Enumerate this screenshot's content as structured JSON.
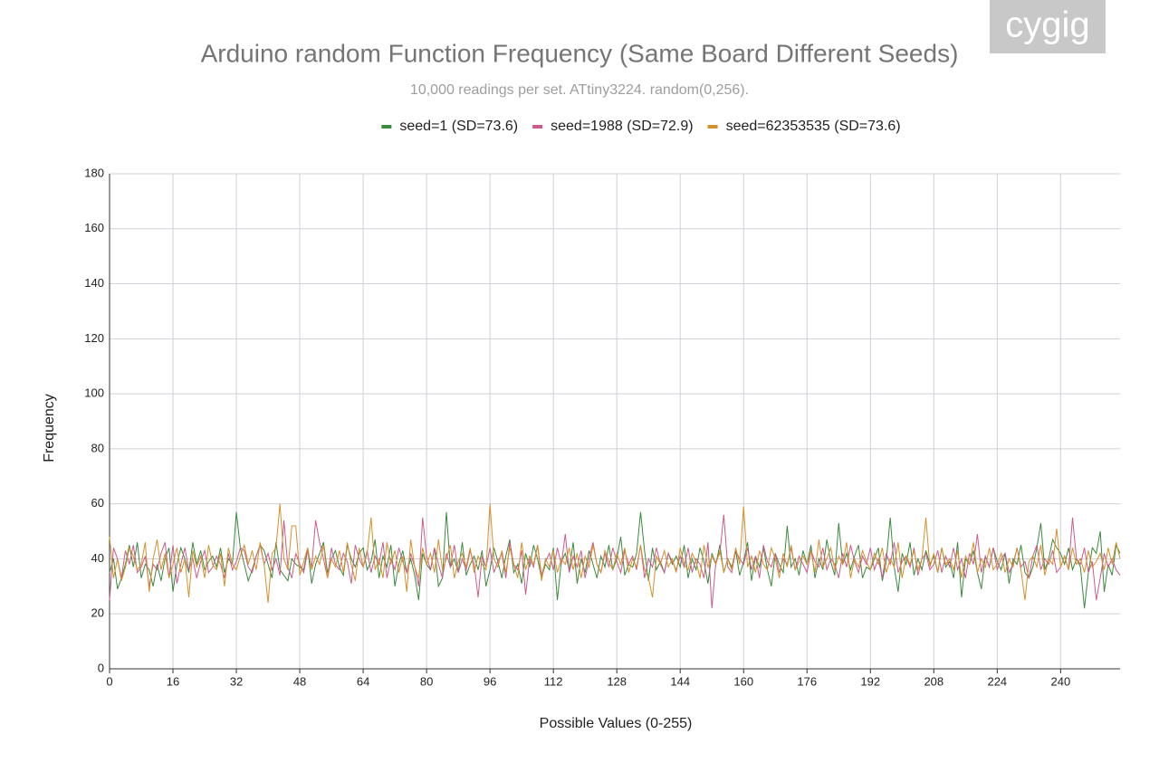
{
  "logo": "cygig",
  "chart_data": {
    "type": "line",
    "title": "Arduino random Function Frequency (Same Board Different Seeds)",
    "subtitle": "10,000 readings per set. ATtiny3224. random(0,256).",
    "xlabel": "Possible Values (0-255)",
    "ylabel": "Frequency",
    "grid": true,
    "legend": "top",
    "xlim": [
      0,
      255
    ],
    "xticks": [
      0,
      16,
      32,
      48,
      64,
      80,
      96,
      112,
      128,
      144,
      160,
      176,
      192,
      208,
      224,
      240
    ],
    "ylim": [
      0,
      180
    ],
    "yticks": [
      0,
      20,
      40,
      60,
      80,
      100,
      120,
      140,
      160,
      180
    ],
    "x": [
      0,
      1,
      2,
      3,
      4,
      5,
      6,
      7,
      8,
      9,
      10,
      11,
      12,
      13,
      14,
      15,
      16,
      17,
      18,
      19,
      20,
      21,
      22,
      23,
      24,
      25,
      26,
      27,
      28,
      29,
      30,
      31,
      32,
      33,
      34,
      35,
      36,
      37,
      38,
      39,
      40,
      41,
      42,
      43,
      44,
      45,
      46,
      47,
      48,
      49,
      50,
      51,
      52,
      53,
      54,
      55,
      56,
      57,
      58,
      59,
      60,
      61,
      62,
      63,
      64,
      65,
      66,
      67,
      68,
      69,
      70,
      71,
      72,
      73,
      74,
      75,
      76,
      77,
      78,
      79,
      80,
      81,
      82,
      83,
      84,
      85,
      86,
      87,
      88,
      89,
      90,
      91,
      92,
      93,
      94,
      95,
      96,
      97,
      98,
      99,
      100,
      101,
      102,
      103,
      104,
      105,
      106,
      107,
      108,
      109,
      110,
      111,
      112,
      113,
      114,
      115,
      116,
      117,
      118,
      119,
      120,
      121,
      122,
      123,
      124,
      125,
      126,
      127,
      128,
      129,
      130,
      131,
      132,
      133,
      134,
      135,
      136,
      137,
      138,
      139,
      140,
      141,
      142,
      143,
      144,
      145,
      146,
      147,
      148,
      149,
      150,
      151,
      152,
      153,
      154,
      155,
      156,
      157,
      158,
      159,
      160,
      161,
      162,
      163,
      164,
      165,
      166,
      167,
      168,
      169,
      170,
      171,
      172,
      173,
      174,
      175,
      176,
      177,
      178,
      179,
      180,
      181,
      182,
      183,
      184,
      185,
      186,
      187,
      188,
      189,
      190,
      191,
      192,
      193,
      194,
      195,
      196,
      197,
      198,
      199,
      200,
      201,
      202,
      203,
      204,
      205,
      206,
      207,
      208,
      209,
      210,
      211,
      212,
      213,
      214,
      215,
      216,
      217,
      218,
      219,
      220,
      221,
      222,
      223,
      224,
      225,
      226,
      227,
      228,
      229,
      230,
      231,
      232,
      233,
      234,
      235,
      236,
      237,
      238,
      239,
      240,
      241,
      242,
      243,
      244,
      245,
      246,
      247,
      248,
      249,
      250,
      251,
      252,
      253,
      254,
      255
    ],
    "series": [
      {
        "name": "seed=1 (SD=73.6)",
        "color": "#3b8a3e",
        "values": [
          35,
          40,
          29,
          33,
          38,
          45,
          37,
          46,
          33,
          38,
          36,
          30,
          38,
          32,
          40,
          44,
          28,
          38,
          44,
          40,
          35,
          46,
          38,
          43,
          36,
          39,
          41,
          37,
          44,
          35,
          40,
          38,
          57,
          44,
          38,
          32,
          36,
          41,
          45,
          43,
          38,
          33,
          46,
          36,
          34,
          32,
          40,
          38,
          37,
          36,
          44,
          31,
          38,
          42,
          46,
          35,
          40,
          43,
          37,
          34,
          45,
          40,
          37,
          42,
          44,
          36,
          39,
          47,
          33,
          41,
          37,
          45,
          30,
          38,
          43,
          35,
          40,
          34,
          25,
          42,
          38,
          36,
          44,
          30,
          33,
          57,
          37,
          40,
          35,
          46,
          34,
          38,
          41,
          36,
          43,
          30,
          36,
          44,
          39,
          33,
          41,
          47,
          35,
          38,
          31,
          42,
          37,
          45,
          40,
          33,
          38,
          36,
          44,
          25,
          39,
          42,
          36,
          46,
          31,
          40,
          35,
          43,
          38,
          33,
          41,
          37,
          45,
          36,
          40,
          48,
          34,
          38,
          37,
          42,
          57,
          43,
          32,
          44,
          36,
          39,
          35,
          42,
          38,
          41,
          37,
          45,
          33,
          40,
          36,
          44,
          39,
          31,
          42,
          38,
          45,
          35,
          40,
          37,
          43,
          34,
          39,
          46,
          32,
          41,
          37,
          44,
          36,
          30,
          42,
          38,
          35,
          52,
          37,
          40,
          34,
          43,
          38,
          45,
          33,
          40,
          36,
          47,
          39,
          34,
          53,
          38,
          42,
          36,
          41,
          45,
          33,
          37,
          36,
          40,
          44,
          32,
          39,
          55,
          37,
          28,
          42,
          38,
          46,
          34,
          40,
          36,
          43,
          38,
          41,
          35,
          44,
          37,
          39,
          33,
          46,
          26,
          40,
          38,
          43,
          35,
          29,
          41,
          37,
          44,
          39,
          36,
          42,
          31,
          40,
          38,
          45,
          35,
          33,
          37,
          44,
          53,
          36,
          40,
          47,
          44,
          42,
          38,
          44,
          36,
          40,
          37,
          22,
          35,
          44,
          42,
          50,
          28,
          38,
          34,
          45,
          42
        ]
      },
      {
        "name": "seed=1988 (SD=72.9)",
        "color": "#cc5a8c",
        "values": [
          25,
          44,
          40,
          33,
          43,
          38,
          45,
          35,
          37,
          41,
          30,
          38,
          36,
          42,
          46,
          33,
          45,
          31,
          38,
          44,
          36,
          40,
          33,
          39,
          43,
          35,
          37,
          41,
          38,
          33,
          42,
          36,
          39,
          44,
          43,
          37,
          35,
          41,
          45,
          38,
          42,
          36,
          40,
          34,
          54,
          37,
          33,
          42,
          38,
          35,
          43,
          37,
          54,
          46,
          40,
          33,
          44,
          38,
          36,
          42,
          39,
          31,
          45,
          40,
          37,
          43,
          35,
          41,
          38,
          46,
          33,
          40,
          36,
          44,
          39,
          35,
          42,
          37,
          30,
          55,
          41,
          36,
          44,
          38,
          33,
          42,
          37,
          45,
          35,
          40,
          36,
          43,
          38,
          26,
          41,
          37,
          44,
          35,
          39,
          42,
          33,
          46,
          38,
          36,
          43,
          27,
          40,
          37,
          45,
          34,
          39,
          42,
          36,
          44,
          38,
          49,
          35,
          41,
          37,
          43,
          33,
          40,
          46,
          38,
          35,
          42,
          37,
          44,
          39,
          35,
          43,
          38,
          41,
          36,
          45,
          33,
          40,
          37,
          44,
          38,
          35,
          42,
          39,
          36,
          41,
          37,
          44,
          35,
          40,
          38,
          33,
          46,
          22,
          39,
          42,
          56,
          37,
          35,
          43,
          40,
          38,
          44,
          36,
          41,
          33,
          45,
          39,
          37,
          42,
          35,
          40,
          38,
          44,
          36,
          41,
          38,
          35,
          43,
          39,
          37,
          44,
          36,
          40,
          38,
          33,
          42,
          37,
          45,
          39,
          35,
          41,
          38,
          44,
          36,
          40,
          33,
          42,
          38,
          46,
          35,
          39,
          41,
          37,
          44,
          34,
          40,
          42,
          36,
          38,
          43,
          35,
          41,
          37,
          44,
          36,
          40,
          33,
          42,
          38,
          49,
          35,
          41,
          37,
          44,
          36,
          40,
          42,
          35,
          38,
          44,
          37,
          39,
          33,
          41,
          45,
          36,
          40,
          38,
          43,
          35,
          37,
          41,
          36,
          55,
          40,
          38,
          44,
          35,
          39,
          25,
          33,
          42,
          37,
          40,
          36,
          34
        ]
      },
      {
        "name": "seed=62353535 (SD=73.6)",
        "color": "#d6902a",
        "values": [
          48,
          33,
          40,
          32,
          37,
          44,
          41,
          36,
          38,
          46,
          28,
          40,
          47,
          36,
          42,
          33,
          38,
          44,
          35,
          40,
          26,
          43,
          37,
          41,
          33,
          45,
          38,
          36,
          42,
          30,
          44,
          38,
          36,
          41,
          45,
          38,
          43,
          36,
          46,
          38,
          24,
          42,
          44,
          60,
          40,
          36,
          52,
          52,
          34,
          39,
          44,
          36,
          41,
          38,
          45,
          33,
          40,
          37,
          43,
          35,
          46,
          38,
          32,
          44,
          37,
          42,
          55,
          36,
          40,
          33,
          46,
          38,
          43,
          35,
          41,
          28,
          47,
          37,
          33,
          44,
          38,
          42,
          35,
          47,
          36,
          40,
          45,
          33,
          39,
          42,
          37,
          44,
          35,
          41,
          38,
          36,
          60,
          40,
          37,
          43,
          35,
          44,
          38,
          33,
          46,
          36,
          41,
          38,
          45,
          32,
          40,
          37,
          43,
          35,
          40,
          38,
          44,
          36,
          42,
          33,
          41,
          37,
          45,
          38,
          35,
          43,
          39,
          36,
          42,
          38,
          44,
          35,
          40,
          37,
          45,
          36,
          33,
          26,
          41,
          38,
          43,
          37,
          40,
          35,
          44,
          38,
          36,
          42,
          39,
          33,
          45,
          37,
          41,
          38,
          43,
          35,
          40,
          36,
          44,
          38,
          59,
          37,
          41,
          35,
          43,
          38,
          36,
          44,
          40,
          33,
          42,
          37,
          45,
          36,
          39,
          41,
          38,
          43,
          35,
          47,
          37,
          40,
          44,
          36,
          41,
          38,
          46,
          33,
          40,
          37,
          43,
          39,
          36,
          42,
          38,
          44,
          35,
          40,
          37,
          46,
          33,
          41,
          38,
          43,
          36,
          40,
          55,
          37,
          42,
          35,
          44,
          38,
          40,
          36,
          43,
          33,
          41,
          38,
          46,
          35,
          40,
          37,
          44,
          36,
          38,
          42,
          35,
          40,
          37,
          44,
          36,
          25,
          39,
          41,
          37,
          45,
          34,
          40,
          38,
          51,
          37,
          41,
          36,
          44,
          38,
          40,
          35,
          43,
          37,
          39,
          42,
          36,
          44,
          38,
          46,
          40
        ]
      }
    ]
  }
}
